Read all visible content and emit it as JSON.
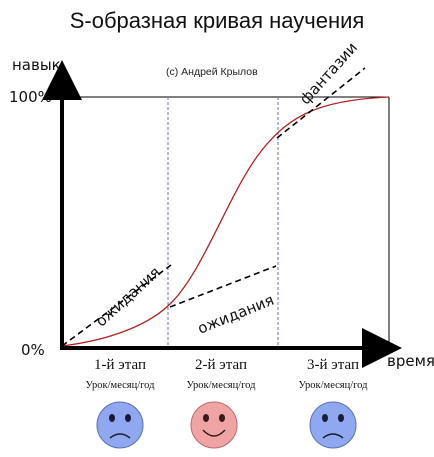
{
  "title": "S-образная кривая научения",
  "copyright": "(с) Андрей Крылов",
  "axes": {
    "y_label": "навык",
    "x_label": "время",
    "y_top_tick": "100%",
    "y_bottom_tick": "0%"
  },
  "annotations": {
    "fantasies": "фантазии",
    "expectations_1": "ожидания",
    "expectations_2": "ожидания"
  },
  "stages": [
    {
      "label": "1-й этап",
      "sub": "Урок/месяц/год",
      "mood": "sad",
      "face_color": "#8fa8f0"
    },
    {
      "label": "2-й этап",
      "sub": "Урок/месяц/год",
      "mood": "happy",
      "face_color": "#efa3a3"
    },
    {
      "label": "3-й этап",
      "sub": "Урок/месяц/год",
      "mood": "sad",
      "face_color": "#8fa8f0"
    }
  ],
  "colors": {
    "curve": "#b22222",
    "dividers": "#6a6fc4",
    "axis": "#000000"
  }
}
